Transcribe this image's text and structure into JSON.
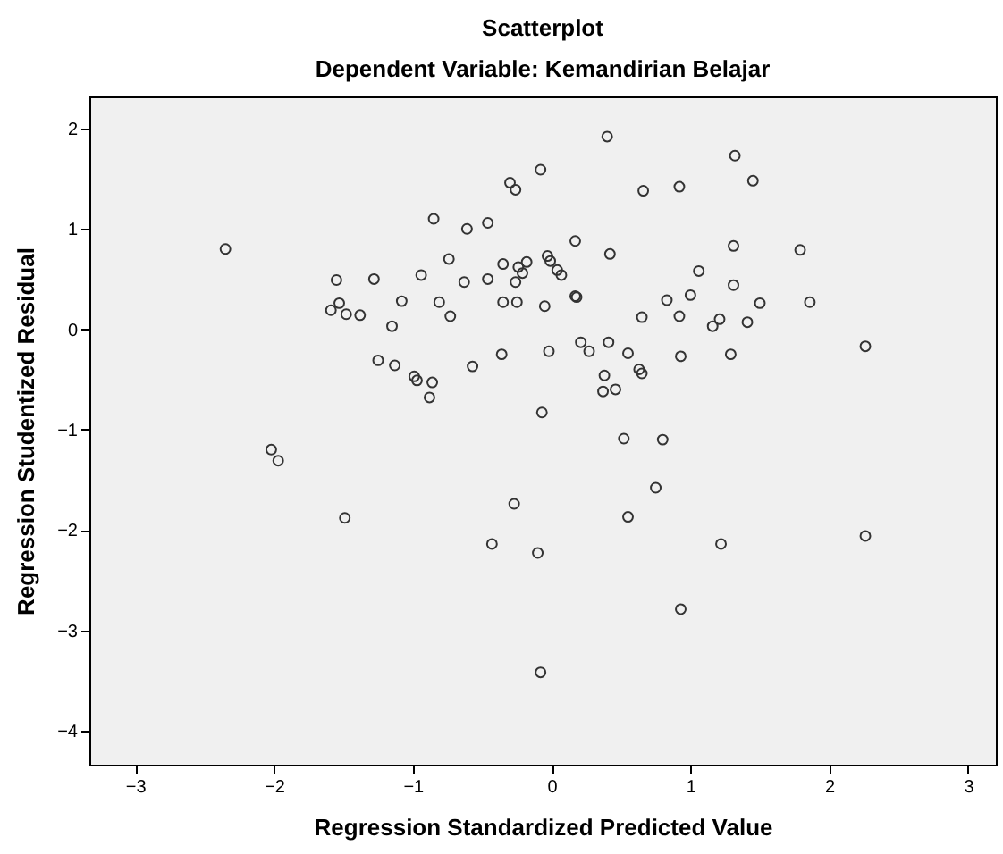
{
  "chart_data": {
    "type": "scatter",
    "title": "Scatterplot",
    "subtitle": "Dependent Variable: Kemandirian Belajar",
    "xlabel": "Regression Standardized Predicted Value",
    "ylabel": "Regression Studentized Residual",
    "xlim": [
      -3.33,
      3.2
    ],
    "ylim": [
      -4.34,
      2.32
    ],
    "xticks": [
      -3,
      -2,
      -1,
      0,
      1,
      2,
      3
    ],
    "yticks": [
      -4,
      -3,
      -2,
      -1,
      0,
      1,
      2
    ],
    "grid": false,
    "marker": "circle",
    "series": [
      {
        "color": "#333333",
        "x": [
          -2.35,
          -1.55,
          -1.53,
          -1.59,
          -1.48,
          -1.38,
          -1.28,
          -1.15,
          -1.25,
          -1.13,
          -1.08,
          -0.94,
          -0.85,
          -0.74,
          -0.81,
          -0.73,
          -0.99,
          -0.97,
          -0.86,
          -0.88,
          -0.61,
          -0.63,
          -0.57,
          -0.46,
          -0.46,
          -0.36,
          -0.35,
          -0.35,
          -0.3,
          -0.26,
          -0.25,
          -0.24,
          -0.26,
          -0.21,
          -0.18,
          0.4,
          -0.08,
          0.66,
          0.92,
          1.32,
          1.45,
          0.17,
          0.42,
          -0.03,
          -0.01,
          0.04,
          0.07,
          -0.05,
          0.17,
          0.18,
          1.06,
          1.31,
          1.79,
          1.31,
          0.83,
          1.0,
          1.5,
          1.86,
          0.65,
          0.92,
          1.21,
          1.16,
          1.41,
          2.26,
          -0.02,
          0.21,
          0.27,
          0.41,
          0.55,
          0.93,
          1.29,
          0.38,
          0.37,
          0.46,
          0.63,
          0.65,
          -0.07,
          0.52,
          0.8,
          -2.02,
          -1.97,
          -1.49,
          -0.43,
          -0.27,
          0.75,
          0.55,
          1.22,
          2.26,
          -0.1,
          0.93,
          -0.08
        ],
        "values": [
          0.8,
          0.49,
          0.26,
          0.19,
          0.15,
          0.14,
          0.5,
          0.03,
          -0.31,
          -0.36,
          0.28,
          0.54,
          1.1,
          0.7,
          0.27,
          0.13,
          -0.47,
          -0.51,
          -0.53,
          -0.68,
          1.0,
          0.47,
          -0.37,
          1.06,
          0.5,
          -0.25,
          0.65,
          0.27,
          1.46,
          1.39,
          0.27,
          0.62,
          0.47,
          0.56,
          0.67,
          1.92,
          1.59,
          1.38,
          1.42,
          1.73,
          1.48,
          0.88,
          0.75,
          0.73,
          0.68,
          0.59,
          0.54,
          0.23,
          0.33,
          0.32,
          0.58,
          0.83,
          0.79,
          0.44,
          0.29,
          0.34,
          0.26,
          0.27,
          0.12,
          0.13,
          0.1,
          0.03,
          0.07,
          -0.17,
          -0.22,
          -0.13,
          -0.22,
          -0.13,
          -0.24,
          -0.27,
          -0.25,
          -0.46,
          -0.62,
          -0.6,
          -0.4,
          -0.44,
          -0.83,
          -1.09,
          -1.1,
          -1.2,
          -1.31,
          -1.88,
          -2.14,
          -1.74,
          -1.58,
          -1.87,
          -2.14,
          -2.06,
          -2.23,
          -2.79,
          -3.42
        ]
      }
    ]
  }
}
